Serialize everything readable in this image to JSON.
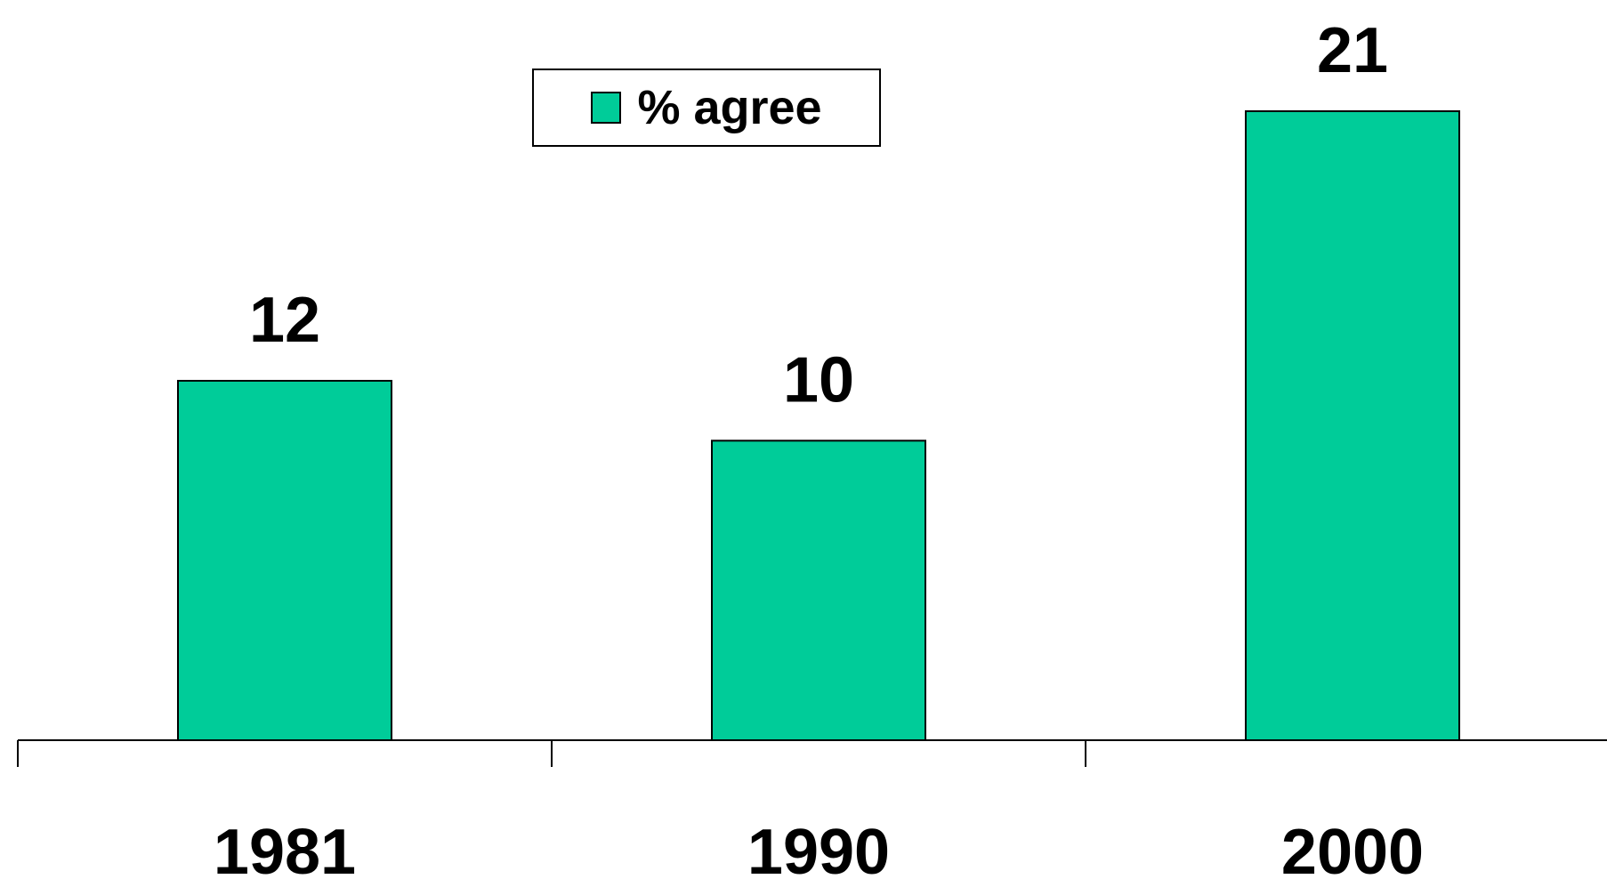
{
  "chart_data": {
    "type": "bar",
    "categories": [
      "1981",
      "1990",
      "2000"
    ],
    "series": [
      {
        "name": "% agree",
        "values": [
          12,
          10,
          21
        ]
      }
    ],
    "data_labels": [
      "12",
      "10",
      "21"
    ],
    "ylim": [
      0,
      24
    ],
    "grid": false,
    "legend": {
      "position": "top-center",
      "entries": [
        "% agree"
      ]
    },
    "colors": {
      "bar": "#00CC99",
      "outline": "#000000"
    }
  }
}
